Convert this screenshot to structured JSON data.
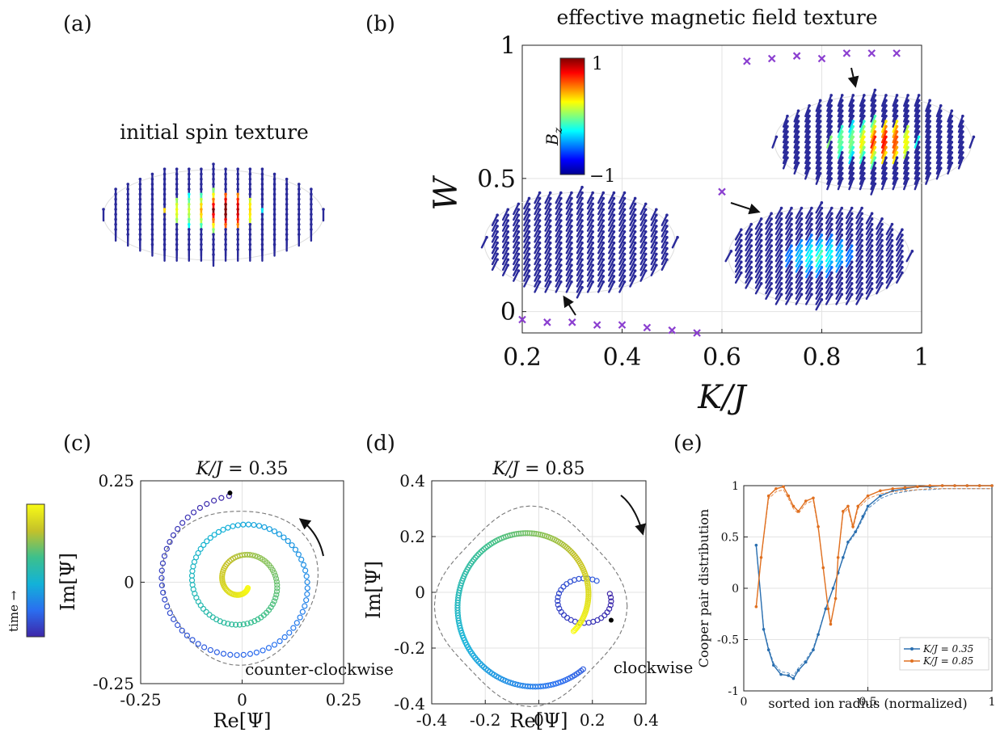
{
  "panel_labels": {
    "a": "(a)",
    "b": "(b)",
    "c": "(c)",
    "d": "(d)",
    "e": "(e)"
  },
  "panel_a": {
    "title": "initial spin texture"
  },
  "panel_b": {
    "title": "effective magnetic field texture",
    "colorbar": {
      "label": "B_z",
      "max_label": "1",
      "min_label": "−1"
    }
  },
  "panel_c": {
    "annotation": "counter-clockwise",
    "colorbar_label": "time →"
  },
  "panel_d": {
    "annotation": "clockwise"
  },
  "colors": {
    "scatter_marker": "#8b3fd0",
    "series_035": "#2a6fb0",
    "series_085": "#e07020",
    "dashed": "#777777",
    "arrow": "#111111"
  },
  "chart_data": [
    {
      "id": "b",
      "type": "scatter",
      "title": "effective magnetic field texture",
      "xlabel": "K/J",
      "ylabel": "W",
      "xlim": [
        0.2,
        1.0
      ],
      "ylim": [
        -0.08,
        1.0
      ],
      "xticks": [
        "0.2",
        "0.4",
        "0.6",
        "0.8",
        "1"
      ],
      "xtick_values": [
        0.2,
        0.4,
        0.6,
        0.8,
        1.0
      ],
      "yticks": [
        "0",
        "0.5",
        "1"
      ],
      "ytick_values": [
        0,
        0.5,
        1
      ],
      "grid": true,
      "series": [
        {
          "marker": "x",
          "x": [
            0.2,
            0.25,
            0.3,
            0.35,
            0.4,
            0.45,
            0.5,
            0.55,
            0.6,
            0.65,
            0.7,
            0.75,
            0.8,
            0.85,
            0.9,
            0.95
          ],
          "y": [
            -0.03,
            -0.04,
            -0.04,
            -0.05,
            -0.05,
            -0.06,
            -0.07,
            -0.08,
            0.45,
            0.94,
            0.95,
            0.96,
            0.95,
            0.97,
            0.97,
            0.97
          ]
        }
      ]
    },
    {
      "id": "c",
      "type": "scatter",
      "title": "K/J = 0.35",
      "xlabel": "Re[Ψ]",
      "ylabel": "Im[Ψ]",
      "xlim": [
        -0.25,
        0.25
      ],
      "ylim": [
        -0.25,
        0.25
      ],
      "xticks": [
        "-0.25",
        "0",
        "0.25"
      ],
      "xtick_values": [
        -0.25,
        0,
        0.25
      ],
      "yticks": [
        "-0.25",
        "0",
        "0.25"
      ],
      "ytick_values": [
        -0.25,
        0,
        0.25
      ],
      "grid": true,
      "trajectory": {
        "direction": "counter-clockwise",
        "start_radius": 0.02,
        "end_radius": 0.22
      },
      "start_point": [
        -0.03,
        0.22
      ]
    },
    {
      "id": "d",
      "type": "scatter",
      "title": "K/J = 0.85",
      "xlabel": "Re[Ψ]",
      "ylabel": "Im[Ψ]",
      "xlim": [
        -0.4,
        0.4
      ],
      "ylim": [
        -0.4,
        0.4
      ],
      "xticks": [
        "-0.4",
        "-0.2",
        "0",
        "0.2",
        "0.4"
      ],
      "xtick_values": [
        -0.4,
        -0.2,
        0,
        0.2,
        0.4
      ],
      "yticks": [
        "-0.4",
        "-0.2",
        "0",
        "0.2",
        "0.4"
      ],
      "ytick_values": [
        -0.4,
        -0.2,
        0,
        0.2,
        0.4
      ],
      "grid": true,
      "trajectory": {
        "direction": "clockwise"
      },
      "start_point": [
        0.27,
        -0.1
      ]
    },
    {
      "id": "e",
      "type": "line",
      "xlabel": "sorted ion radius (normalized)",
      "ylabel": "Cooper pair distribution",
      "xlim": [
        0,
        1
      ],
      "ylim": [
        -1,
        1
      ],
      "xticks": [
        "0",
        "0.5",
        "1"
      ],
      "xtick_values": [
        0,
        0.5,
        1
      ],
      "yticks": [
        "-1",
        "-0.5",
        "0",
        "0.5",
        "1"
      ],
      "ytick_values": [
        -1,
        -0.5,
        0,
        0.5,
        1
      ],
      "grid": true,
      "legend_position": "bottom-right",
      "series": [
        {
          "name": "K/J = 0.35",
          "x": [
            0.05,
            0.08,
            0.1,
            0.12,
            0.15,
            0.18,
            0.2,
            0.22,
            0.25,
            0.28,
            0.3,
            0.33,
            0.36,
            0.38,
            0.4,
            0.42,
            0.45,
            0.48,
            0.5,
            0.55,
            0.6,
            0.65,
            0.7,
            0.75,
            0.8,
            0.85,
            0.9,
            0.95,
            1.0
          ],
          "y": [
            0.42,
            -0.4,
            -0.6,
            -0.75,
            -0.84,
            -0.85,
            -0.88,
            -0.8,
            -0.72,
            -0.6,
            -0.45,
            -0.2,
            0.0,
            0.15,
            0.3,
            0.45,
            0.55,
            0.7,
            0.8,
            0.9,
            0.95,
            0.97,
            0.99,
            0.99,
            1.0,
            1.0,
            1.0,
            1.0,
            1.0
          ]
        },
        {
          "name": "K/J = 0.85",
          "x": [
            0.05,
            0.07,
            0.1,
            0.13,
            0.16,
            0.18,
            0.2,
            0.22,
            0.25,
            0.28,
            0.3,
            0.32,
            0.34,
            0.35,
            0.37,
            0.38,
            0.4,
            0.42,
            0.44,
            0.46,
            0.5,
            0.55,
            0.6,
            0.65,
            0.7,
            0.75,
            0.8,
            0.85,
            0.9,
            0.95,
            1.0
          ],
          "y": [
            -0.18,
            0.3,
            0.9,
            0.97,
            0.99,
            0.9,
            0.8,
            0.75,
            0.85,
            0.88,
            0.6,
            0.2,
            -0.2,
            -0.35,
            -0.1,
            0.3,
            0.75,
            0.8,
            0.6,
            0.8,
            0.9,
            0.95,
            0.97,
            0.98,
            0.99,
            1.0,
            1.0,
            1.0,
            1.0,
            1.0,
            1.0
          ]
        }
      ]
    }
  ]
}
